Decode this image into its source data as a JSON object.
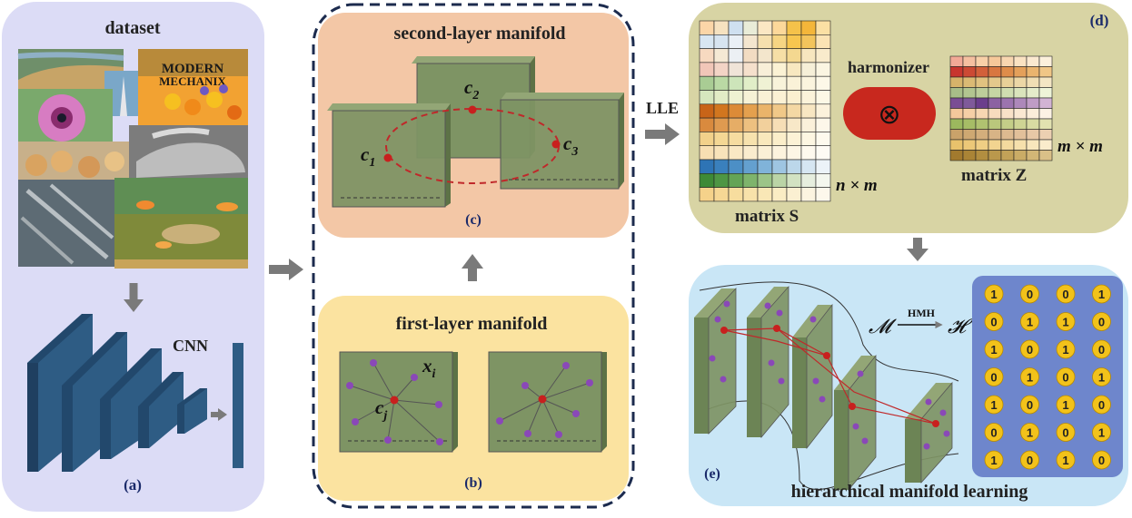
{
  "panel_a": {
    "title": "dataset",
    "cnn_label": "CNN",
    "caption": "(a)"
  },
  "panel_b": {
    "title": "first-layer manifold",
    "xi": "x",
    "xi_sub": "i",
    "cj": "c",
    "cj_sub": "j",
    "caption": "(b)"
  },
  "panel_c": {
    "title": "second-layer manifold",
    "c1": "c",
    "c1_sub": "1",
    "c2": "c",
    "c2_sub": "2",
    "c3": "c",
    "c3_sub": "3",
    "caption": "(c)"
  },
  "panel_d": {
    "caption": "(d)",
    "matrix_s_label": "matrix S",
    "matrix_s_dim": "n × m",
    "matrix_z_label": "matrix Z",
    "matrix_z_dim": "m × m",
    "operator_label": "harmonizer",
    "operator_symbol": "⊗"
  },
  "arrow_lle": "LLE",
  "panel_e": {
    "caption": "(e)",
    "title": "hierarchical manifold learning",
    "map_from": "𝓜",
    "map_to": "𝓗",
    "map_label": "HMH",
    "codes": [
      [
        1,
        0,
        0,
        1
      ],
      [
        0,
        1,
        1,
        0
      ],
      [
        1,
        0,
        1,
        0
      ],
      [
        0,
        1,
        0,
        1
      ],
      [
        1,
        0,
        1,
        0
      ],
      [
        0,
        1,
        0,
        1
      ],
      [
        1,
        0,
        1,
        0
      ]
    ]
  },
  "colors": {
    "panel_a_bg": "#dcdcf6",
    "panel_c_bg": "#f3c7a6",
    "panel_b_bg": "#fbe3a0",
    "panel_d_bg": "#d8d4a4",
    "panel_e_bg": "#c9e6f6",
    "plate": "#7e9464",
    "cnn_block": "#2e5c84",
    "harmonizer": "#c8281e",
    "code_bg": "#6e86cc",
    "code_circle": "#f2c21a",
    "arrow": "#7a7a7a",
    "dashed_frame": "#1c2b4e"
  },
  "matrix_s_colors": [
    [
      "#fbd6a8",
      "#f6e2c0",
      "#cfe0f0",
      "#e9ecd8",
      "#fbe7c4",
      "#fcd89a",
      "#f5c24a",
      "#f4b63a",
      "#fbe0a4"
    ],
    [
      "#d8e6f2",
      "#d7e4f0",
      "#eaf0f6",
      "#f4e6cf",
      "#f6e0ae",
      "#f6d583",
      "#f7c64f",
      "#f3c45c",
      "#fbe3b4"
    ],
    [
      "#f7d9c0",
      "#f5e9d4",
      "#ecf0f4",
      "#f2dcc2",
      "#f3e6cc",
      "#f6dfa6",
      "#f4d890",
      "#f7e6bf",
      "#f9ebcc"
    ],
    [
      "#f1c6b8",
      "#f3d4c6",
      "#f0e4d8",
      "#f5e0cc",
      "#f8efd8",
      "#fbf2d4",
      "#f8e8c0",
      "#f6efd8",
      "#fbf5e2"
    ],
    [
      "#a9cc94",
      "#bad9a4",
      "#cde5ba",
      "#e1eec8",
      "#f0f2d4",
      "#f8f3da",
      "#faf2d8",
      "#fbf4de",
      "#fdf8e8"
    ],
    [
      "#d6e6be",
      "#e2ecc6",
      "#eef2d2",
      "#f6f2d6",
      "#f9f1d6",
      "#fbf1d4",
      "#fbf0d0",
      "#fcf3da",
      "#fdf8e6"
    ],
    [
      "#c86418",
      "#d2761f",
      "#dc8b37",
      "#e4a04e",
      "#eab46a",
      "#f0c888",
      "#f4d8a4",
      "#f8e6c2",
      "#fcf2dc"
    ],
    [
      "#d98a3e",
      "#df9a50",
      "#e6ad66",
      "#edc080",
      "#f2d09c",
      "#f6deb6",
      "#f8e8c8",
      "#fbf0da",
      "#fdf7ea"
    ],
    [
      "#f2d18a",
      "#f4d794",
      "#f6dca0",
      "#f7e2ae",
      "#f9e8bc",
      "#fbeeca",
      "#fcf2d6",
      "#fdf6e2",
      "#fefaee"
    ],
    [
      "#f7dfb2",
      "#f8e3ba",
      "#f9e8c4",
      "#faecce",
      "#fbf0d6",
      "#fcf3de",
      "#fdf6e6",
      "#fef9ee",
      "#fefbf4"
    ],
    [
      "#2e74b5",
      "#3a80bd",
      "#4c8fc6",
      "#64a0cf",
      "#80b3d9",
      "#9ec5e2",
      "#bcd7ea",
      "#d6e6f2",
      "#ecf3f8"
    ],
    [
      "#3e8a36",
      "#4e9644",
      "#64a456",
      "#7eb46c",
      "#9cc488",
      "#bad4a6",
      "#d2e2c2",
      "#e6eede",
      "#f4f7ee"
    ],
    [
      "#f5d28a",
      "#f6d794",
      "#f7dd9e",
      "#f8e2aa",
      "#f9e7b6",
      "#faecc4",
      "#fbf0d2",
      "#fcf4e0",
      "#fdf8ec"
    ]
  ],
  "matrix_z_colors": [
    [
      "#f2a996",
      "#f5bfa0",
      "#f8d0a8",
      "#f6c89a",
      "#f8d6b0",
      "#fae2c2",
      "#fbe9d0",
      "#fcf0dc"
    ],
    [
      "#c8362e",
      "#cc4a34",
      "#d2603a",
      "#d87640",
      "#de8c4a",
      "#e4a05a",
      "#eab46e",
      "#f0c686"
    ],
    [
      "#d7b36a",
      "#dbba74",
      "#e0c280",
      "#e4c98c",
      "#e8d098",
      "#ecd7a6",
      "#f0deb4",
      "#f4e6c4"
    ],
    [
      "#a8bd88",
      "#b2c590",
      "#bccd9a",
      "#c6d5a4",
      "#d0ddb0",
      "#dae4bc",
      "#e4ecca",
      "#eef4d8"
    ],
    [
      "#7a4d94",
      "#7f5a9a",
      "#6b3e8c",
      "#8c62a2",
      "#9c74ae",
      "#ad88ba",
      "#bf9cc6",
      "#d2b4d4"
    ],
    [
      "#f4c89c",
      "#f5cfa6",
      "#f6d6b2",
      "#f7dcbe",
      "#f9e2c8",
      "#fae8d2",
      "#fbedda",
      "#fcf2e4"
    ],
    [
      "#9cb85e",
      "#a6bd66",
      "#b0c270",
      "#bac87c",
      "#c4ce88",
      "#ced494",
      "#d8dba2",
      "#e2e2b0"
    ],
    [
      "#c9a26a",
      "#cea872",
      "#d3ae7c",
      "#d8b486",
      "#ddba90",
      "#e2c09a",
      "#e7c8a6",
      "#ecd0b2"
    ],
    [
      "#e8c26c",
      "#ecc878",
      "#efce84",
      "#f2d490",
      "#f4da9e",
      "#f6e0ac",
      "#f8e6bc",
      "#faeccc"
    ],
    [
      "#a27a2e",
      "#aa8436",
      "#b28e40",
      "#ba984c",
      "#c2a258",
      "#caac66",
      "#d2b676",
      "#dac088"
    ]
  ]
}
